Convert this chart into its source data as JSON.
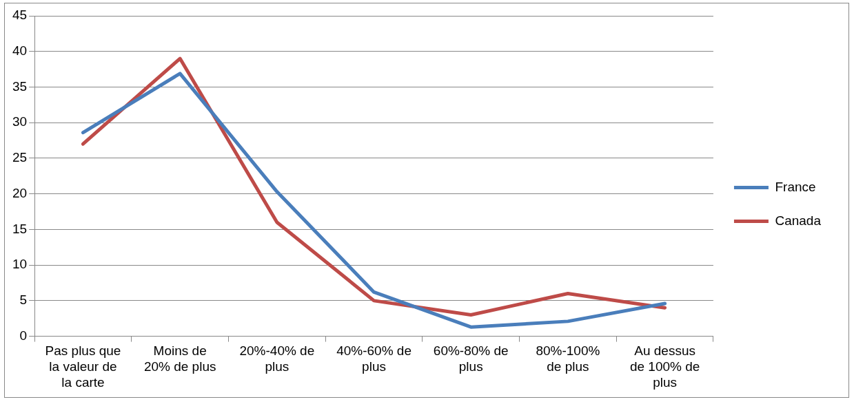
{
  "chart_data": {
    "type": "line",
    "categories": [
      "Pas plus que la valeur de la carte",
      "Moins de 20% de plus",
      "20%-40% de plus",
      "40%-60% de plus",
      "60%-80% de plus",
      "80%-100% de plus",
      "Au dessus de 100% de plus"
    ],
    "series": [
      {
        "name": "France",
        "color": "#4a7ebb",
        "values": [
          28.6,
          36.9,
          20.3,
          6.2,
          1.3,
          2.1,
          4.6
        ]
      },
      {
        "name": "Canada",
        "color": "#be4b48",
        "values": [
          27,
          39,
          16,
          5,
          3,
          6,
          4
        ]
      }
    ],
    "ylim": [
      0,
      45
    ],
    "yticks": [
      0,
      5,
      10,
      15,
      20,
      25,
      30,
      35,
      40,
      45
    ],
    "grid": "y",
    "legend": "right",
    "marker": "none",
    "line_style": "solid"
  }
}
